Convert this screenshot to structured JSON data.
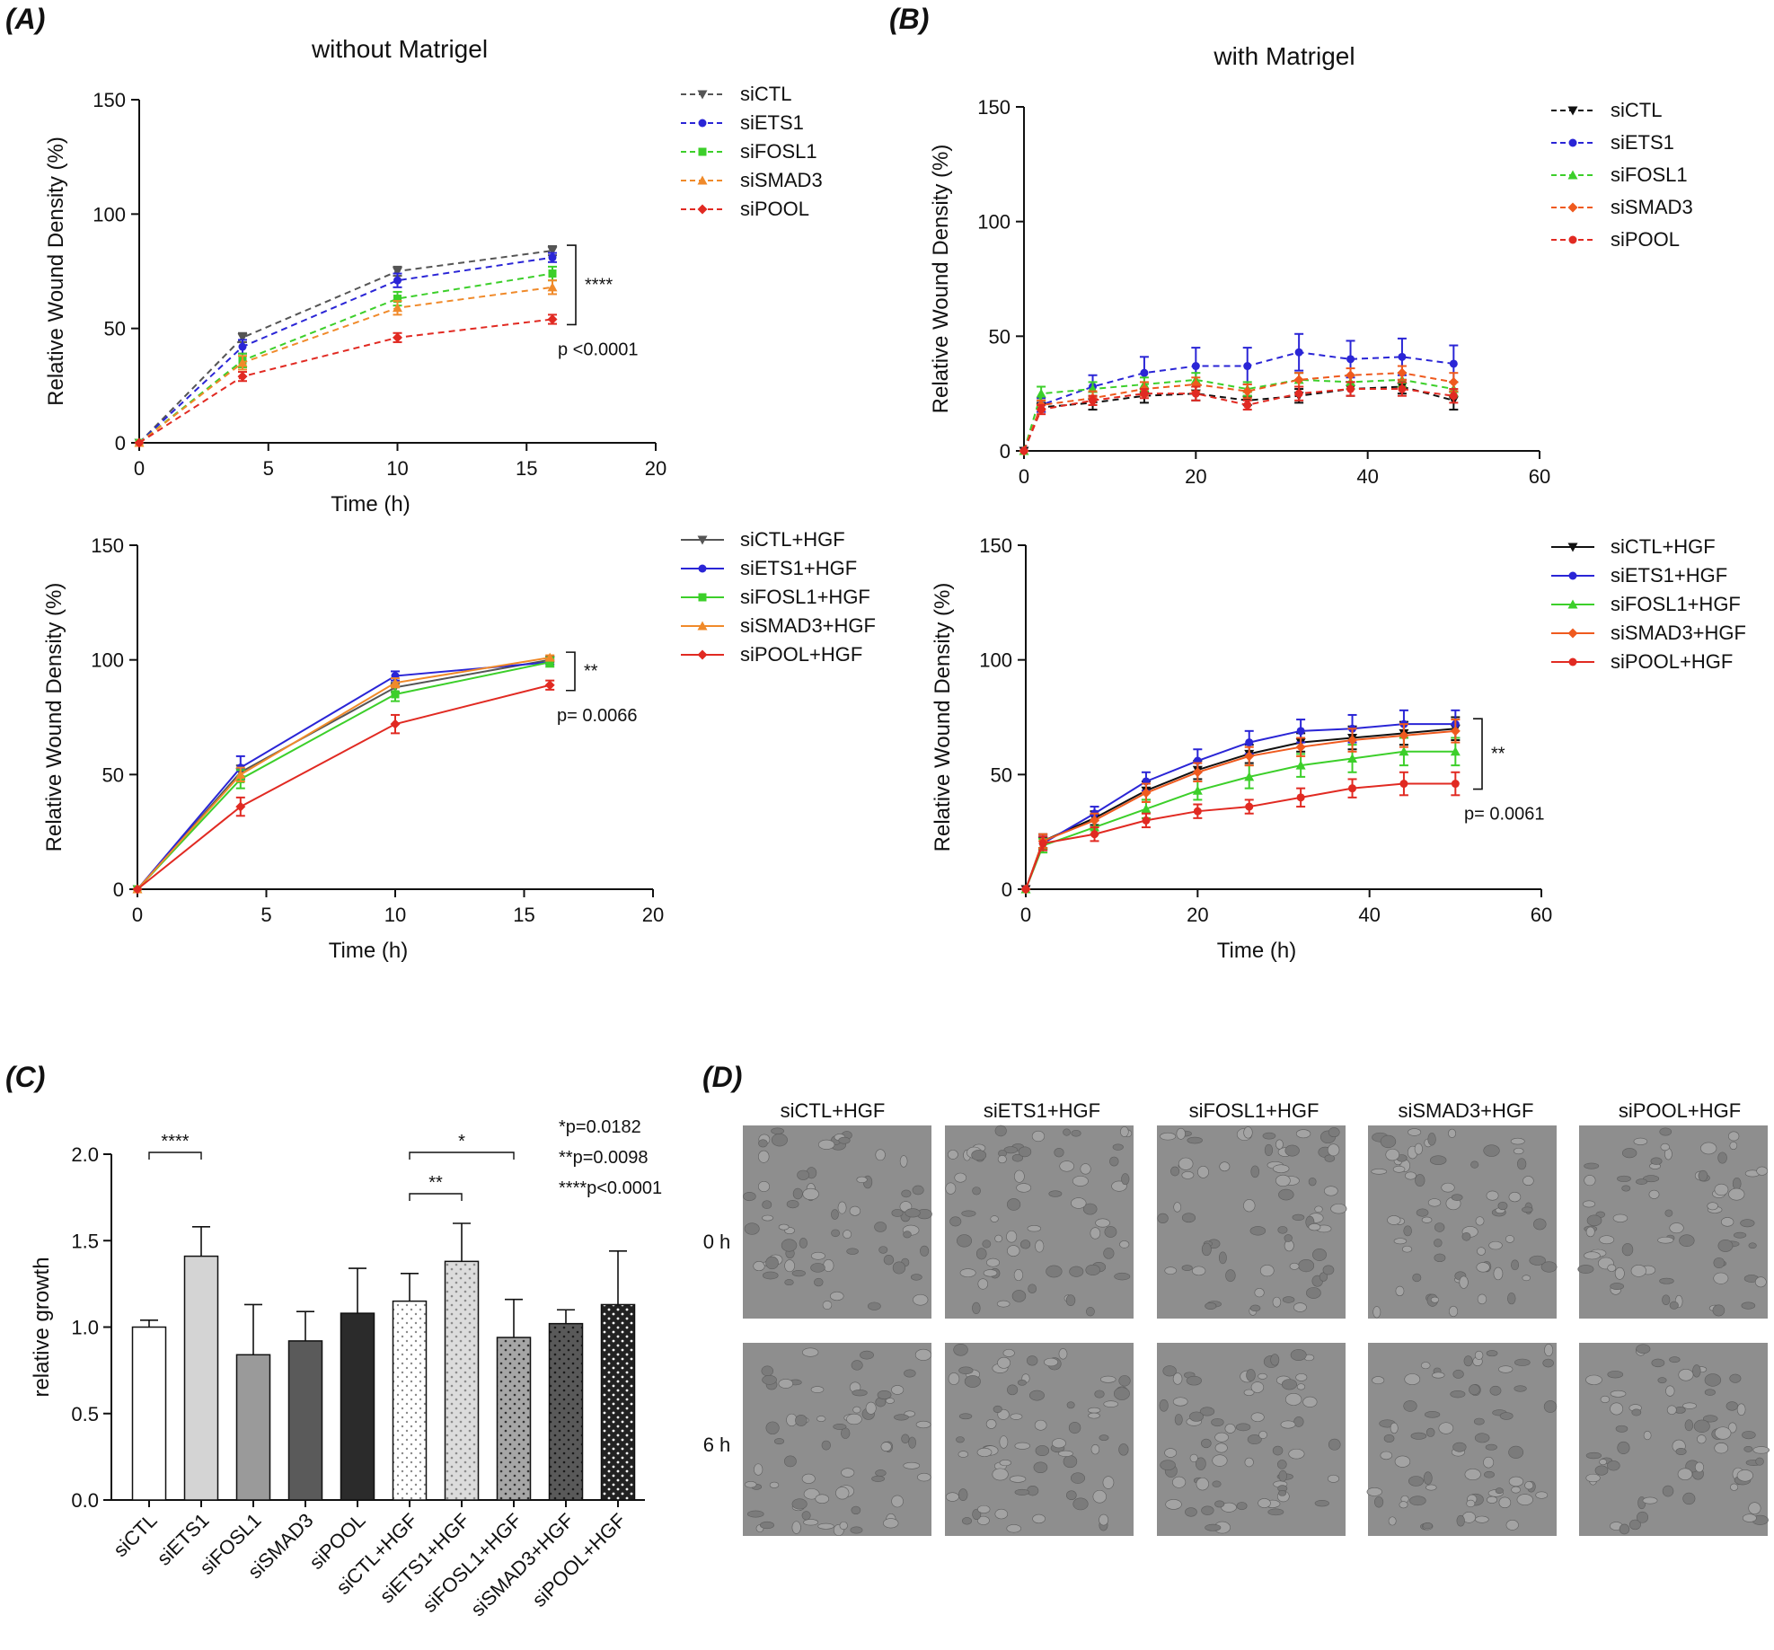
{
  "panels": {
    "a": "(A)",
    "b": "(B)",
    "c": "(C)",
    "d": "(D)"
  },
  "titles": {
    "without": "without Matrigel",
    "with": "with Matrigel"
  },
  "axis": {
    "wound_ylabel": "Relative Wound Density (%)",
    "time_xlabel": "Time (h)",
    "growth_ylabel": "relative growth"
  },
  "colors": {
    "ctl": "#555555",
    "ctl_b": "#111111",
    "ets1": "#2a25d6",
    "fosl1": "#3ccf2a",
    "smad3": "#f08a2a",
    "smad3_b": "#ef5a1e",
    "pool": "#e12a22"
  },
  "chart_data": [
    {
      "id": "A-top",
      "type": "line",
      "title": "without Matrigel",
      "xlabel": "Time (h)",
      "ylabel": "Relative Wound Density (%)",
      "xlim": [
        0,
        20
      ],
      "ylim": [
        0,
        150
      ],
      "xticks": [
        0,
        5,
        10,
        15,
        20
      ],
      "yticks": [
        0,
        50,
        100,
        150
      ],
      "x": [
        0,
        4,
        10,
        16
      ],
      "dashed": true,
      "series": [
        {
          "name": "siCTL",
          "color_key": "ctl",
          "marker": "tri-down",
          "values": [
            0,
            46,
            75,
            84
          ],
          "err": [
            0,
            2,
            2,
            2
          ]
        },
        {
          "name": "siETS1",
          "color_key": "ets1",
          "marker": "circle",
          "values": [
            0,
            42,
            71,
            81
          ],
          "err": [
            0,
            3,
            3,
            2
          ]
        },
        {
          "name": "siFOSL1",
          "color_key": "fosl1",
          "marker": "square",
          "values": [
            0,
            36,
            63,
            74
          ],
          "err": [
            0,
            3,
            3,
            3
          ]
        },
        {
          "name": "siSMAD3",
          "color_key": "smad3",
          "marker": "tri-up",
          "values": [
            0,
            35,
            59,
            68
          ],
          "err": [
            0,
            3,
            3,
            3
          ]
        },
        {
          "name": "siPOOL",
          "color_key": "pool",
          "marker": "diamond",
          "values": [
            0,
            29,
            46,
            54
          ],
          "err": [
            0,
            2,
            2,
            2
          ]
        }
      ],
      "annotations": {
        "stars": "****",
        "p": "p <0.0001"
      }
    },
    {
      "id": "A-bottom",
      "type": "line",
      "title": "",
      "xlabel": "Time (h)",
      "ylabel": "Relative Wound Density (%)",
      "xlim": [
        0,
        20
      ],
      "ylim": [
        0,
        150
      ],
      "xticks": [
        0,
        5,
        10,
        15,
        20
      ],
      "yticks": [
        0,
        50,
        100,
        150
      ],
      "x": [
        0,
        4,
        10,
        16
      ],
      "dashed": false,
      "series": [
        {
          "name": "siCTL+HGF",
          "color_key": "ctl",
          "marker": "tri-down",
          "values": [
            0,
            51,
            88,
            100
          ],
          "err": [
            0,
            3,
            2,
            1
          ]
        },
        {
          "name": "siETS1+HGF",
          "color_key": "ets1",
          "marker": "circle",
          "values": [
            0,
            53,
            93,
            99
          ],
          "err": [
            0,
            5,
            2,
            1
          ]
        },
        {
          "name": "siFOSL1+HGF",
          "color_key": "fosl1",
          "marker": "square",
          "values": [
            0,
            48,
            85,
            99
          ],
          "err": [
            0,
            4,
            3,
            2
          ]
        },
        {
          "name": "siSMAD3+HGF",
          "color_key": "smad3",
          "marker": "tri-up",
          "values": [
            0,
            50,
            90,
            101
          ],
          "err": [
            0,
            3,
            2,
            1
          ]
        },
        {
          "name": "siPOOL+HGF",
          "color_key": "pool",
          "marker": "diamond",
          "values": [
            0,
            36,
            72,
            89
          ],
          "err": [
            0,
            4,
            4,
            2
          ]
        }
      ],
      "annotations": {
        "stars": "**",
        "p": "p= 0.0066"
      }
    },
    {
      "id": "B-top",
      "type": "line",
      "title": "with Matrigel",
      "xlabel": "",
      "ylabel": "Relative Wound Density (%)",
      "xlim": [
        0,
        60
      ],
      "ylim": [
        0,
        150
      ],
      "xticks": [
        0,
        20,
        40,
        60
      ],
      "yticks": [
        0,
        50,
        100,
        150
      ],
      "x": [
        0,
        2,
        8,
        14,
        20,
        26,
        32,
        38,
        44,
        50
      ],
      "dashed": true,
      "series": [
        {
          "name": "siCTL",
          "color_key": "ctl_b",
          "marker": "tri-down",
          "values": [
            0,
            19,
            21,
            24,
            25,
            22,
            24,
            27,
            28,
            22
          ],
          "err": [
            0,
            2,
            3,
            3,
            3,
            2,
            3,
            3,
            3,
            4
          ]
        },
        {
          "name": "siETS1",
          "color_key": "ets1",
          "marker": "circle",
          "values": [
            0,
            20,
            28,
            34,
            37,
            37,
            43,
            40,
            41,
            38
          ],
          "err": [
            0,
            3,
            5,
            7,
            8,
            8,
            8,
            8,
            8,
            8
          ]
        },
        {
          "name": "siFOSL1",
          "color_key": "fosl1",
          "marker": "tri-up",
          "values": [
            0,
            25,
            27,
            29,
            31,
            27,
            31,
            30,
            31,
            27
          ],
          "err": [
            0,
            3,
            3,
            3,
            3,
            3,
            3,
            3,
            3,
            3
          ]
        },
        {
          "name": "siSMAD3",
          "color_key": "smad3_b",
          "marker": "diamond",
          "values": [
            0,
            20,
            23,
            27,
            29,
            26,
            31,
            33,
            34,
            30
          ],
          "err": [
            0,
            2,
            3,
            3,
            3,
            3,
            3,
            3,
            3,
            4
          ]
        },
        {
          "name": "siPOOL",
          "color_key": "pool",
          "marker": "circle",
          "values": [
            0,
            18,
            22,
            25,
            25,
            20,
            25,
            27,
            27,
            24
          ],
          "err": [
            0,
            2,
            2,
            2,
            3,
            2,
            3,
            3,
            3,
            3
          ]
        }
      ],
      "annotations": {
        "stars": "",
        "p": ""
      }
    },
    {
      "id": "B-bottom",
      "type": "line",
      "title": "",
      "xlabel": "Time (h)",
      "ylabel": "Relative Wound Density (%)",
      "xlim": [
        0,
        60
      ],
      "ylim": [
        0,
        150
      ],
      "xticks": [
        0,
        20,
        40,
        60
      ],
      "yticks": [
        0,
        50,
        100,
        150
      ],
      "x": [
        0,
        2,
        8,
        14,
        20,
        26,
        32,
        38,
        44,
        50
      ],
      "dashed": false,
      "series": [
        {
          "name": "siCTL+HGF",
          "color_key": "ctl_b",
          "marker": "tri-down",
          "values": [
            0,
            21,
            31,
            43,
            52,
            59,
            64,
            66,
            68,
            70
          ],
          "err": [
            0,
            3,
            3,
            4,
            4,
            4,
            4,
            5,
            5,
            5
          ]
        },
        {
          "name": "siETS1+HGF",
          "color_key": "ets1",
          "marker": "circle",
          "values": [
            0,
            20,
            33,
            47,
            56,
            64,
            69,
            70,
            72,
            72
          ],
          "err": [
            0,
            3,
            3,
            4,
            5,
            5,
            5,
            6,
            6,
            6
          ]
        },
        {
          "name": "siFOSL1+HGF",
          "color_key": "fosl1",
          "marker": "tri-up",
          "values": [
            0,
            19,
            27,
            35,
            43,
            49,
            54,
            57,
            60,
            60
          ],
          "err": [
            0,
            3,
            3,
            4,
            4,
            5,
            5,
            6,
            6,
            6
          ]
        },
        {
          "name": "siSMAD3+HGF",
          "color_key": "smad3_b",
          "marker": "diamond",
          "values": [
            0,
            21,
            30,
            42,
            51,
            58,
            62,
            65,
            67,
            69
          ],
          "err": [
            0,
            3,
            3,
            4,
            4,
            4,
            4,
            5,
            5,
            5
          ]
        },
        {
          "name": "siPOOL+HGF",
          "color_key": "pool",
          "marker": "circle",
          "values": [
            0,
            20,
            24,
            30,
            34,
            36,
            40,
            44,
            46,
            46
          ],
          "err": [
            0,
            3,
            3,
            3,
            3,
            3,
            4,
            4,
            5,
            5
          ]
        }
      ],
      "annotations": {
        "stars": "**",
        "p": "p= 0.0061"
      }
    },
    {
      "id": "C",
      "type": "bar",
      "title": "",
      "xlabel": "",
      "ylabel": "relative growth",
      "ylim": [
        0,
        2.0
      ],
      "yticks": [
        "0.0",
        "0.5",
        "1.0",
        "1.5",
        "2.0"
      ],
      "categories": [
        "siCTL",
        "siETS1",
        "siFOSL1",
        "siSMAD3",
        "siPOOL",
        "siCTL+HGF",
        "siETS1+HGF",
        "siFOSL1+HGF",
        "siSMAD3+HGF",
        "siPOOL+HGF"
      ],
      "values": [
        1.0,
        1.41,
        0.84,
        0.92,
        1.08,
        1.15,
        1.38,
        0.94,
        1.02,
        1.13
      ],
      "err": [
        0.04,
        0.17,
        0.29,
        0.17,
        0.26,
        0.16,
        0.22,
        0.22,
        0.08,
        0.31
      ],
      "fills": [
        "white",
        "#d4d4d4",
        "#9a9a9a",
        "#5a5a5a",
        "#2b2b2b",
        "dots-light",
        "dots-grey",
        "dots-mid",
        "dots-dark",
        "dots-black"
      ],
      "brackets": [
        {
          "from": 0,
          "to": 1,
          "label": "****"
        },
        {
          "from": 5,
          "to": 7,
          "label": "*"
        },
        {
          "from": 5,
          "to": 6,
          "label": "**"
        }
      ],
      "pvalues": [
        "*p=0.0182",
        "**p=0.0098",
        "****p<0.0001"
      ]
    }
  ],
  "panel_d": {
    "columns": [
      "siCTL+HGF",
      "siETS1+HGF",
      "siFOSL1+HGF",
      "siSMAD3+HGF",
      "siPOOL+HGF"
    ],
    "rows": [
      "0 h",
      "6 h"
    ]
  }
}
